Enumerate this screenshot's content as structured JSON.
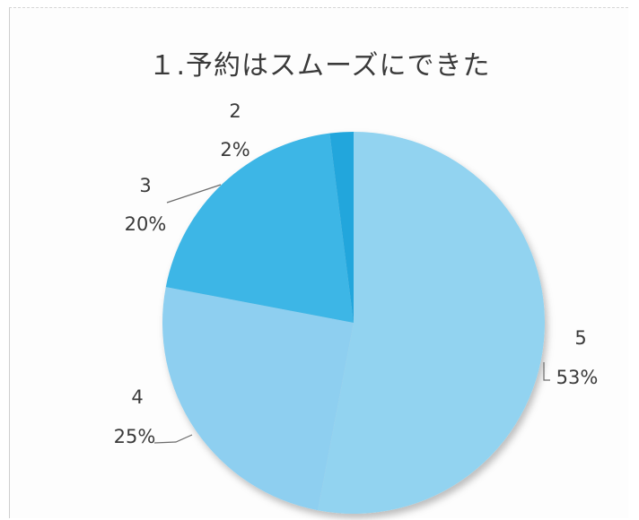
{
  "chart_data": {
    "type": "pie",
    "title": "１.予約はスムーズにできた",
    "slices": [
      {
        "name": "5",
        "value": 53,
        "label": "53%",
        "color": "#92d3f0"
      },
      {
        "name": "4",
        "value": 25,
        "label": "25%",
        "color": "#8ecff0"
      },
      {
        "name": "3",
        "value": 20,
        "label": "20%",
        "color": "#3eb6e6"
      },
      {
        "name": "2",
        "value": 2,
        "label": "2%",
        "color": "#22a6dc"
      }
    ]
  }
}
